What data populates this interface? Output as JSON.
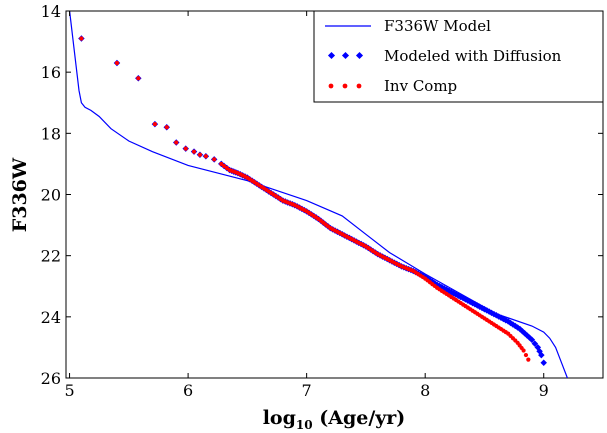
{
  "chart_data": {
    "type": "scatter",
    "xlabel": {
      "main": "log",
      "sub": "10",
      "rest": " (Age/yr)"
    },
    "ylabel": "F336W",
    "xlim": [
      4.97,
      9.5
    ],
    "ylim": [
      26,
      14
    ],
    "y_inverted": true,
    "grid": false,
    "legend_position": "top-right",
    "x_ticks": [
      5,
      6,
      7,
      8,
      9
    ],
    "y_ticks": [
      14,
      16,
      18,
      20,
      22,
      24,
      26
    ],
    "legend": [
      {
        "label": "F336W Model",
        "kind": "line",
        "color": "#0000ff"
      },
      {
        "label": "Modeled with Diffusion",
        "kind": "points",
        "color": "#0000ff"
      },
      {
        "label": "Inv Comp",
        "kind": "points",
        "color": "#ff0000"
      }
    ],
    "series": [
      {
        "name": "F336W Model",
        "kind": "line",
        "color": "#0000ff",
        "points": [
          [
            5.0,
            14.0
          ],
          [
            5.04,
            15.3
          ],
          [
            5.08,
            16.6
          ],
          [
            5.1,
            17.0
          ],
          [
            5.13,
            17.15
          ],
          [
            5.18,
            17.25
          ],
          [
            5.25,
            17.45
          ],
          [
            5.35,
            17.85
          ],
          [
            5.5,
            18.25
          ],
          [
            5.7,
            18.6
          ],
          [
            6.0,
            19.05
          ],
          [
            6.5,
            19.55
          ],
          [
            7.0,
            20.2
          ],
          [
            7.3,
            20.7
          ],
          [
            7.5,
            21.3
          ],
          [
            7.7,
            21.9
          ],
          [
            8.0,
            22.6
          ],
          [
            8.3,
            23.25
          ],
          [
            8.6,
            23.9
          ],
          [
            8.9,
            24.3
          ],
          [
            9.0,
            24.5
          ],
          [
            9.05,
            24.7
          ],
          [
            9.1,
            25.0
          ],
          [
            9.15,
            25.5
          ],
          [
            9.2,
            26.0
          ]
        ]
      },
      {
        "name": "Modeled with Diffusion",
        "kind": "points",
        "color": "#0000ff",
        "points": [
          [
            5.1,
            14.9
          ],
          [
            5.4,
            15.7
          ],
          [
            5.58,
            16.2
          ],
          [
            5.72,
            17.7
          ],
          [
            5.82,
            17.8
          ],
          [
            5.9,
            18.3
          ],
          [
            5.98,
            18.5
          ],
          [
            6.05,
            18.6
          ],
          [
            6.1,
            18.7
          ],
          [
            6.15,
            18.75
          ],
          [
            6.22,
            18.85
          ],
          [
            6.28,
            19.0
          ],
          [
            6.35,
            19.2
          ],
          [
            6.42,
            19.3
          ],
          [
            6.5,
            19.45
          ],
          [
            6.6,
            19.7
          ],
          [
            6.7,
            19.95
          ],
          [
            6.8,
            20.2
          ],
          [
            6.9,
            20.35
          ],
          [
            7.0,
            20.55
          ],
          [
            7.1,
            20.8
          ],
          [
            7.2,
            21.1
          ],
          [
            7.3,
            21.3
          ],
          [
            7.4,
            21.5
          ],
          [
            7.5,
            21.7
          ],
          [
            7.6,
            21.95
          ],
          [
            7.7,
            22.15
          ],
          [
            7.8,
            22.35
          ],
          [
            7.9,
            22.5
          ],
          [
            8.0,
            22.7
          ],
          [
            8.1,
            22.95
          ],
          [
            8.2,
            23.15
          ],
          [
            8.3,
            23.35
          ],
          [
            8.4,
            23.55
          ],
          [
            8.5,
            23.75
          ],
          [
            8.6,
            23.95
          ],
          [
            8.7,
            24.15
          ],
          [
            8.8,
            24.4
          ],
          [
            8.9,
            24.75
          ],
          [
            8.95,
            25.0
          ],
          [
            8.98,
            25.25
          ],
          [
            9.0,
            25.5
          ]
        ]
      },
      {
        "name": "Inv Comp",
        "kind": "points",
        "color": "#ff0000",
        "points": [
          [
            5.1,
            14.9
          ],
          [
            5.4,
            15.7
          ],
          [
            5.58,
            16.2
          ],
          [
            5.72,
            17.7
          ],
          [
            5.82,
            17.8
          ],
          [
            5.9,
            18.3
          ],
          [
            5.98,
            18.5
          ],
          [
            6.05,
            18.6
          ],
          [
            6.1,
            18.7
          ],
          [
            6.15,
            18.75
          ],
          [
            6.22,
            18.85
          ],
          [
            6.28,
            19.0
          ],
          [
            6.35,
            19.2
          ],
          [
            6.42,
            19.3
          ],
          [
            6.5,
            19.45
          ],
          [
            6.6,
            19.7
          ],
          [
            6.7,
            19.95
          ],
          [
            6.8,
            20.2
          ],
          [
            6.9,
            20.35
          ],
          [
            7.0,
            20.55
          ],
          [
            7.1,
            20.8
          ],
          [
            7.2,
            21.1
          ],
          [
            7.3,
            21.3
          ],
          [
            7.4,
            21.5
          ],
          [
            7.5,
            21.7
          ],
          [
            7.6,
            21.95
          ],
          [
            7.7,
            22.15
          ],
          [
            7.8,
            22.35
          ],
          [
            7.9,
            22.5
          ],
          [
            8.0,
            22.75
          ],
          [
            8.1,
            23.05
          ],
          [
            8.2,
            23.3
          ],
          [
            8.3,
            23.55
          ],
          [
            8.4,
            23.8
          ],
          [
            8.5,
            24.05
          ],
          [
            8.6,
            24.3
          ],
          [
            8.7,
            24.55
          ],
          [
            8.78,
            24.85
          ],
          [
            8.83,
            25.1
          ],
          [
            8.87,
            25.4
          ]
        ]
      }
    ]
  }
}
